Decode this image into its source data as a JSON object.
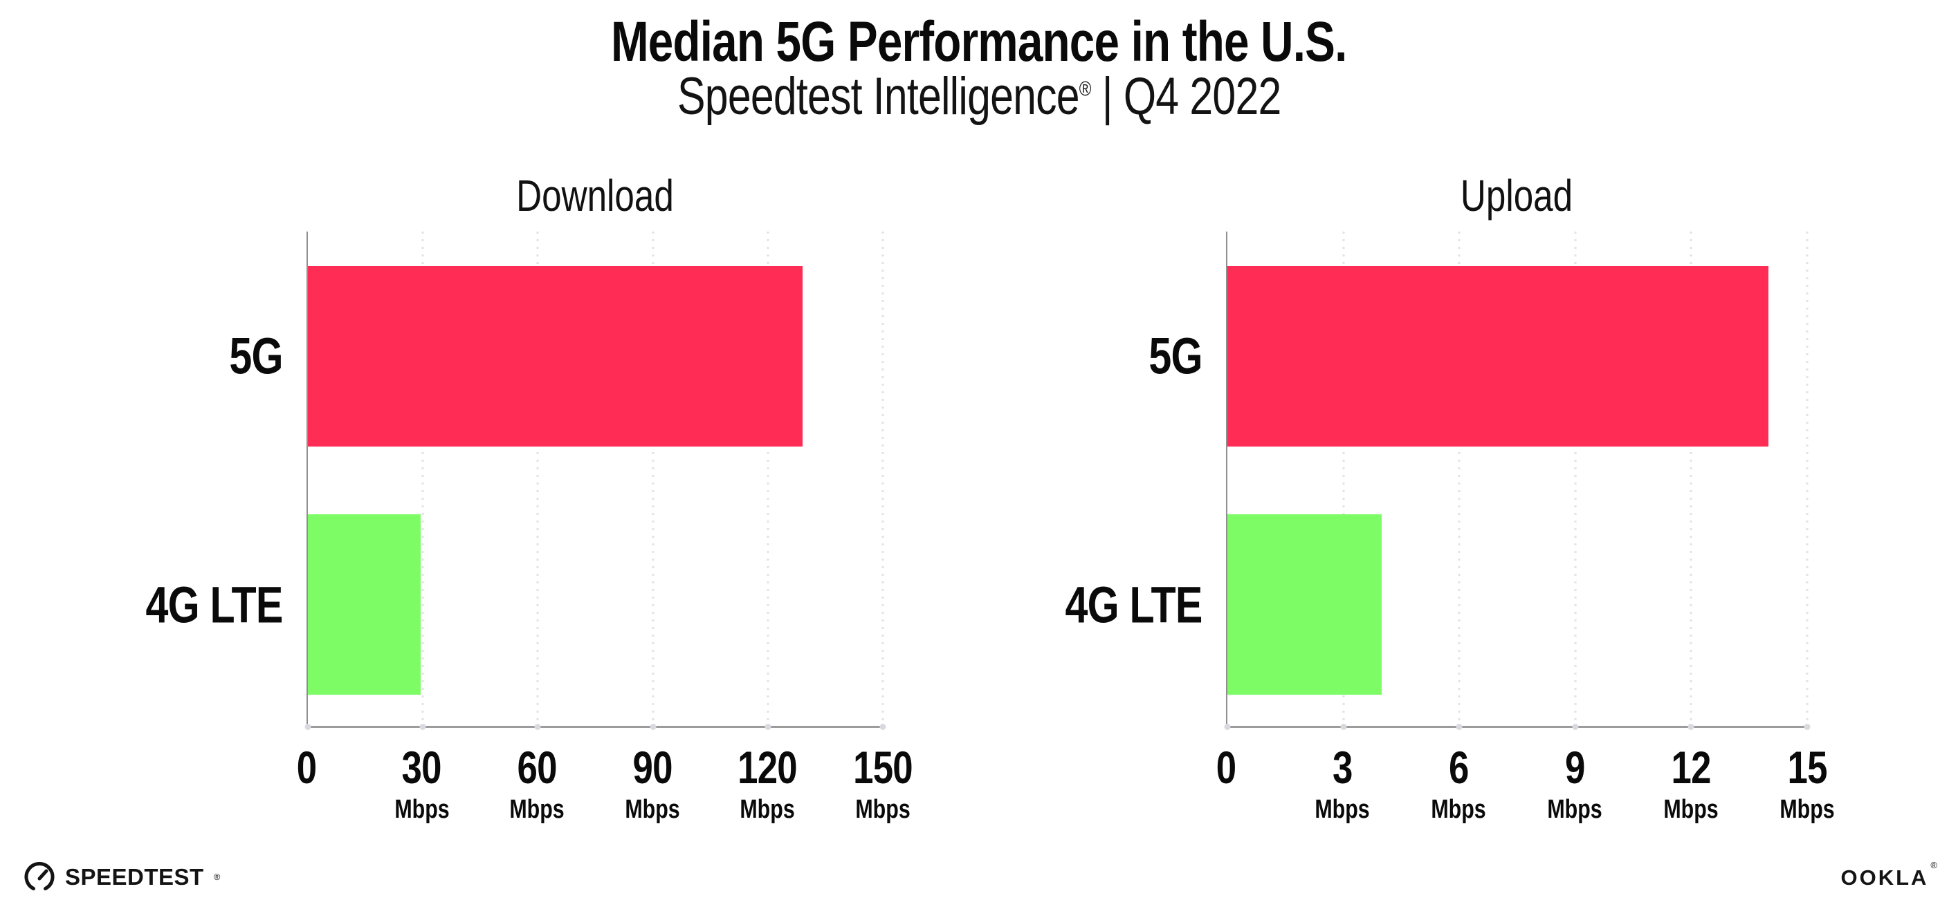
{
  "header": {
    "title": "Median 5G Performance in the U.S.",
    "subtitle_brand": "Speedtest Intelligence",
    "subtitle_mark": "®",
    "subtitle_rest": " | Q4 2022"
  },
  "colors": {
    "bar_5g": "#FF2D55",
    "bar_4g_lte": "#7DFC66",
    "axis": "#9C9C9C",
    "gridline": "#E2E2EA",
    "text": "#0A0A0B"
  },
  "chart_data": [
    {
      "type": "bar",
      "orientation": "horizontal",
      "title": "Download",
      "categories": [
        "5G",
        "4G LTE"
      ],
      "values": [
        129,
        29.5
      ],
      "bar_colors": [
        "#FF2D55",
        "#7DFC66"
      ],
      "xlim": [
        0,
        150
      ],
      "xticks": [
        0,
        30,
        60,
        90,
        120,
        150
      ],
      "xtick_unit": "Mbps",
      "grid": "vertical-dotted",
      "legend": "none"
    },
    {
      "type": "bar",
      "orientation": "horizontal",
      "title": "Upload",
      "categories": [
        "5G",
        "4G LTE"
      ],
      "values": [
        14,
        4
      ],
      "bar_colors": [
        "#FF2D55",
        "#7DFC66"
      ],
      "xlim": [
        0,
        15
      ],
      "xticks": [
        0,
        3,
        6,
        9,
        12,
        15
      ],
      "xtick_unit": "Mbps",
      "grid": "vertical-dotted",
      "legend": "none"
    }
  ],
  "footer": {
    "speedtest_label": "SPEEDTEST",
    "speedtest_mark": "®",
    "ookla_label": "OOKLA",
    "ookla_mark": "®"
  }
}
